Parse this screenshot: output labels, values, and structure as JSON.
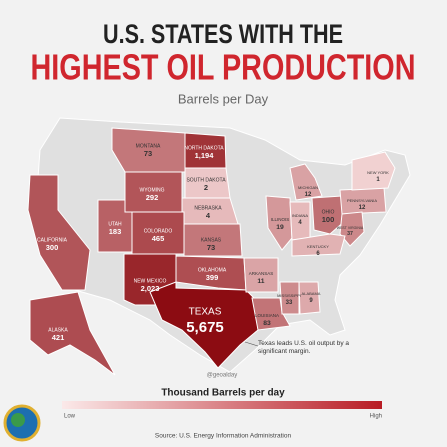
{
  "header": {
    "title_line1": "U.S. STATES WITH THE",
    "title_line2": "HIGHEST OIL PRODUCTION",
    "subtitle": "Barrels per Day"
  },
  "states": [
    {
      "name": "MONTANA",
      "value": 73
    },
    {
      "name": "NORTH DAKOTA",
      "value": {
        "value": 1194,
        "label": "1,194"
      }
    },
    {
      "name": "SOUTH DAKOTA",
      "value": 2
    },
    {
      "name": "WYOMING",
      "value": 292
    },
    {
      "name": "NEBRASKA",
      "value": 4
    },
    {
      "name": "UTAH",
      "value": 183
    },
    {
      "name": "COLORADO",
      "value": 465
    },
    {
      "name": "KANSAS",
      "value": 73
    },
    {
      "name": "CALIFORNIA",
      "value": 300
    },
    {
      "name": "NEW MEXICO",
      "value": {
        "value": 2023,
        "label": "2,023"
      }
    },
    {
      "name": "OKLAHOMA",
      "value": 399
    },
    {
      "name": "TEXAS",
      "value": {
        "value": 5675,
        "label": "5,675"
      }
    },
    {
      "name": "ARKANSAS",
      "value": 11
    },
    {
      "name": "LOUISIANA",
      "value": 83
    },
    {
      "name": "MISSISSIPPI",
      "value": 33
    },
    {
      "name": "ALABAMA",
      "value": 9
    },
    {
      "name": "ILLINOIS",
      "value": 19
    },
    {
      "name": "INDIANA",
      "value": 4
    },
    {
      "name": "MICHIGAN",
      "value": 12
    },
    {
      "name": "OHIO",
      "value": 100
    },
    {
      "name": "PENNSYLVANIA",
      "value": 12
    },
    {
      "name": "NEW YORK",
      "value": 1
    },
    {
      "name": "WEST VIRGINIA",
      "value": 37
    },
    {
      "name": "KENTUCKY",
      "value": 6
    },
    {
      "name": "ALASKA",
      "value": 421
    }
  ],
  "annotation": "Texas leads U.S. oil output by a significant margin.",
  "handle": "@geoalday",
  "legend": {
    "title": "Thousand Barrels per day",
    "low": "Low",
    "high": "High"
  },
  "source": "Source: U.S. Energy Information Administration"
}
